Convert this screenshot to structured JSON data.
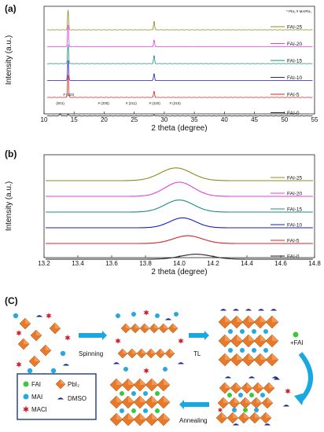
{
  "chart_data": [
    {
      "panel": "(a)",
      "type": "line",
      "xlabel": "2 theta (degree)",
      "ylabel": "Intensity (a.u.)",
      "xlim": [
        10,
        55
      ],
      "xticks": [
        10,
        15,
        20,
        25,
        30,
        35,
        40,
        45,
        50,
        55
      ],
      "corner_note": "* PbI₂  # MAPbI₃",
      "peak_labels": [
        "(001)",
        "# (110)",
        "# (200)",
        "# (211)",
        "# (220)",
        "# (310)"
      ],
      "peak_positions": [
        12.7,
        14.1,
        19.9,
        24.5,
        28.4,
        31.8
      ],
      "series": [
        {
          "name": "FAI-25",
          "color": "#8b8b1e",
          "peaks": [
            [
              14.0,
              62
            ],
            [
              28.3,
              28
            ]
          ]
        },
        {
          "name": "FAI-20",
          "color": "#e040e0",
          "peaks": [
            [
              14.0,
              68
            ],
            [
              28.3,
              22
            ]
          ]
        },
        {
          "name": "FAI-15",
          "color": "#1a8f7a",
          "peaks": [
            [
              14.0,
              60
            ],
            [
              28.3,
              26
            ]
          ]
        },
        {
          "name": "FAI-10",
          "color": "#1a1ad0",
          "peaks": [
            [
              14.0,
              64
            ],
            [
              28.3,
              22
            ]
          ]
        },
        {
          "name": "FAI-5",
          "color": "#e02020",
          "peaks": [
            [
              14.0,
              70
            ],
            [
              28.3,
              20
            ]
          ]
        },
        {
          "name": "FAI-0",
          "color": "#222222",
          "peaks": [
            [
              12.7,
              4
            ],
            [
              14.0,
              3
            ],
            [
              28.3,
              2
            ]
          ]
        }
      ]
    },
    {
      "panel": "(b)",
      "type": "line",
      "xlabel": "2 theta (degree)",
      "ylabel": "Intensity (a.u.)",
      "xlim": [
        13.2,
        14.8
      ],
      "xticks": [
        "13.2",
        "13.4",
        "13.6",
        "13.8",
        "14.0",
        "14.2",
        "14.4",
        "14.6",
        "14.8"
      ],
      "series": [
        {
          "name": "FAI-25",
          "color": "#8b8b1e",
          "center": 13.98,
          "height": 0.9,
          "width": 0.13
        },
        {
          "name": "FAI-20",
          "color": "#e040e0",
          "center": 14.0,
          "height": 1.0,
          "width": 0.12
        },
        {
          "name": "FAI-15",
          "color": "#1a8f7a",
          "center": 14.0,
          "height": 0.85,
          "width": 0.12
        },
        {
          "name": "FAI-10",
          "color": "#1a1ad0",
          "center": 14.02,
          "height": 0.7,
          "width": 0.11
        },
        {
          "name": "FAI-5",
          "color": "#e02020",
          "center": 14.05,
          "height": 0.55,
          "width": 0.12
        },
        {
          "name": "FAI-0",
          "color": "#222222",
          "center": 14.1,
          "height": 0.35,
          "width": 0.13
        }
      ]
    }
  ],
  "schematic": {
    "panel": "(C)",
    "steps": {
      "spinning": "Spinning",
      "tl": "TL",
      "fai": "+FAI",
      "annealing": "Annealing"
    },
    "legend": {
      "fai": "FAI",
      "mai": "MAI",
      "maci": "MACl",
      "pbi2": "PbI₂",
      "dmso": "DMSO"
    },
    "colors": {
      "octahedron": "#e8782a",
      "fai": "#3cc83c",
      "mai": "#28a8e0",
      "maci": "#d02030",
      "dmso": "#1a2a8a",
      "arrow": "#1aa8e0"
    }
  }
}
